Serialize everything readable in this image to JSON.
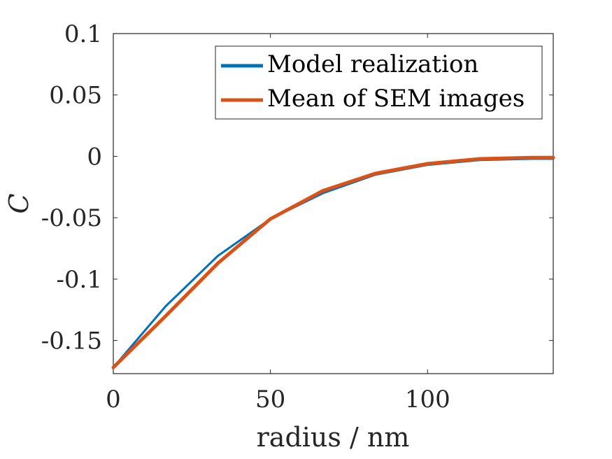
{
  "chart_data": {
    "type": "line",
    "title": "",
    "xlabel": "radius / nm",
    "ylabel": "C",
    "xlim": [
      0,
      140
    ],
    "ylim": [
      -0.177,
      0.1
    ],
    "xticks": [
      0,
      50,
      100
    ],
    "xtick_labels": [
      "0",
      "50",
      "100"
    ],
    "yticks": [
      0.1,
      0.05,
      0,
      -0.05,
      -0.1,
      -0.15
    ],
    "ytick_labels": [
      "0.1",
      "0.05",
      "0",
      "-0.05",
      "-0.1",
      "-0.15"
    ],
    "grid": false,
    "legend_position": "top-right",
    "series": [
      {
        "name": "Model realization",
        "color": "#0072BD",
        "x": [
          0,
          16.7,
          33.3,
          50,
          66.7,
          83.3,
          100,
          116.7,
          133.3,
          140
        ],
        "y": [
          -0.172,
          -0.122,
          -0.081,
          -0.051,
          -0.03,
          -0.015,
          -0.007,
          -0.003,
          -0.002,
          -0.002
        ]
      },
      {
        "name": "Mean of SEM images",
        "color": "#D95319",
        "x": [
          0,
          16.7,
          33.3,
          50,
          66.7,
          83.3,
          100,
          116.7,
          133.3,
          140
        ],
        "y": [
          -0.172,
          -0.13,
          -0.087,
          -0.051,
          -0.028,
          -0.014,
          -0.006,
          -0.002,
          -0.001,
          -0.001
        ]
      }
    ]
  }
}
